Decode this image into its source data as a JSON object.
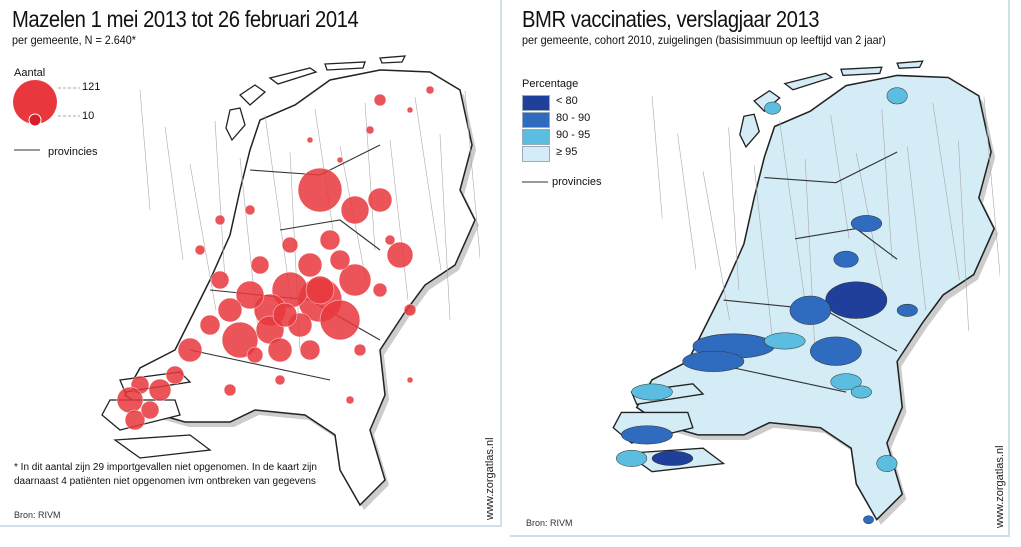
{
  "left_map": {
    "title": "Mazelen 1 mei 2013 tot 26 februari 2014",
    "subtitle": "per gemeente, N = 2.640*",
    "legend": {
      "title": "Aantal",
      "large_value": "121",
      "small_value": "10",
      "province_label": "provincies"
    },
    "footnote_line1": "* In dit aantal zijn 29 importgevallen niet opgenomen. In de kaart zijn",
    "footnote_line2": "daarnaast 4 patiënten niet opgenomen ivm ontbreken van gegevens",
    "source": "Bron: RIVM",
    "website": "www.zorgatlas.nl",
    "marker_color": "#e8383d"
  },
  "right_map": {
    "title": "BMR vaccinaties, verslagjaar 2013",
    "subtitle": "per gemeente, cohort 2010, zuigelingen (basisimmuun op leeftijd van 2 jaar)",
    "legend": {
      "title": "Percentage",
      "classes": [
        {
          "label": "< 80",
          "color": "#1f3f9a"
        },
        {
          "label": "80 - 90",
          "color": "#2f6bbf"
        },
        {
          "label": "90 - 95",
          "color": "#5bbde0"
        },
        {
          "label": "≥ 95",
          "color": "#d3ecf5"
        }
      ],
      "province_label": "provincies"
    },
    "source": "Bron: RIVM",
    "website": "www.zorgatlas.nl"
  }
}
